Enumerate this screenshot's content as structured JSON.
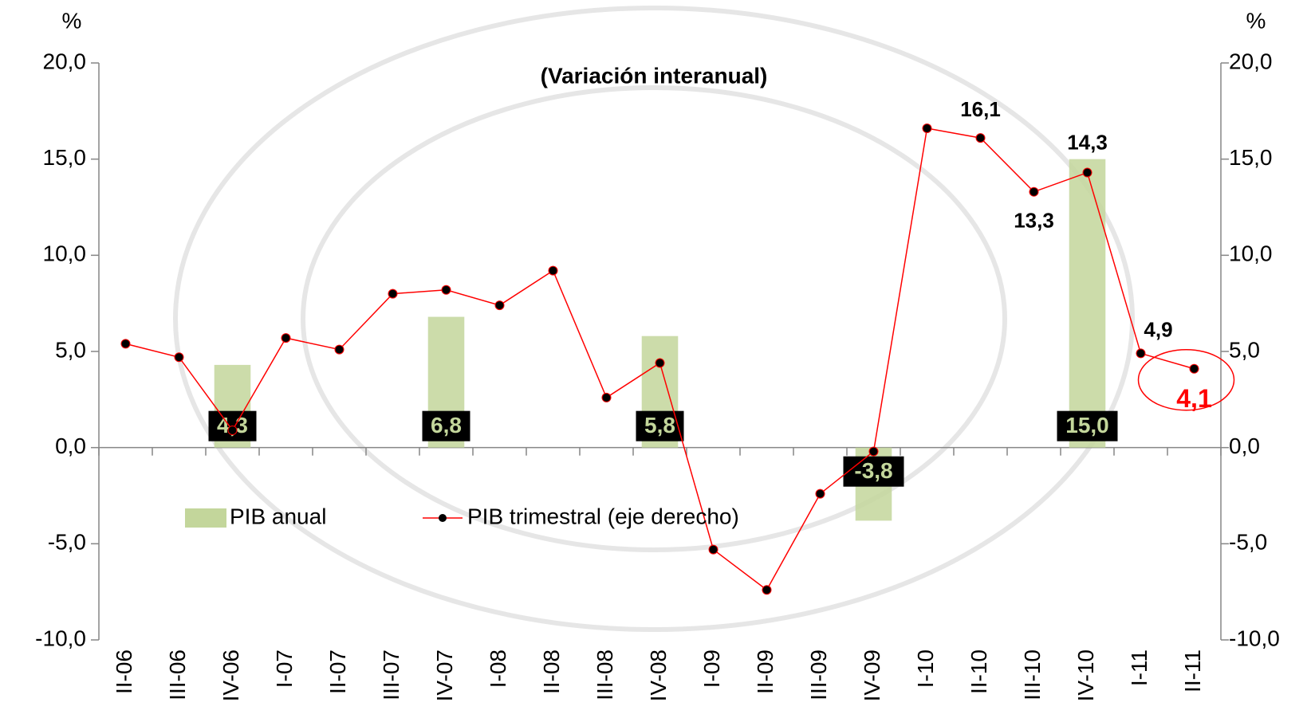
{
  "chart_data": {
    "type": "bar_line",
    "title": "(Variación interanual)",
    "y_label": "%",
    "y2_label": "%",
    "categories": [
      "II-06",
      "III-06",
      "IV-06",
      "I-07",
      "II-07",
      "III-07",
      "IV-07",
      "I-08",
      "II-08",
      "III-08",
      "IV-08",
      "I-09",
      "II-09",
      "III-09",
      "IV-09",
      "I-10",
      "II-10",
      "III-10",
      "IV-10",
      "I-11",
      "II-11"
    ],
    "series": [
      {
        "name": "PIB anual",
        "type": "bar",
        "color": "#c3d69b",
        "values": [
          null,
          null,
          4.3,
          null,
          null,
          null,
          6.8,
          null,
          null,
          null,
          5.8,
          null,
          null,
          null,
          -3.8,
          null,
          null,
          null,
          15.0,
          null,
          null
        ],
        "value_labels": [
          null,
          null,
          "4,3",
          null,
          null,
          null,
          "6,8",
          null,
          null,
          null,
          "5,8",
          null,
          null,
          null,
          "-3,8",
          null,
          null,
          null,
          "15,0",
          null,
          null
        ]
      },
      {
        "name": "PIB trimestral (eje derecho)",
        "type": "line",
        "axis": "y2",
        "color": "#ff0000",
        "marker_color": "#000000",
        "values": [
          5.4,
          4.7,
          0.9,
          5.7,
          5.1,
          8.0,
          8.2,
          7.4,
          9.2,
          2.6,
          4.4,
          -5.3,
          -7.4,
          -2.4,
          -0.2,
          16.6,
          16.1,
          13.3,
          14.3,
          4.9,
          4.1
        ],
        "value_labels": [
          null,
          null,
          null,
          null,
          null,
          null,
          null,
          null,
          null,
          null,
          null,
          null,
          null,
          null,
          null,
          null,
          "16,1",
          "13,3",
          "14,3",
          "4,9",
          "4,1"
        ],
        "highlight_color": "#ff0000"
      }
    ],
    "ylim": [
      -10,
      20
    ],
    "yticks": [
      {
        "value": -10,
        "label": "-10,0"
      },
      {
        "value": -5,
        "label": "-5,0"
      },
      {
        "value": 0,
        "label": "0,0"
      },
      {
        "value": 5,
        "label": "5,0"
      },
      {
        "value": 10,
        "label": "10,0"
      },
      {
        "value": 15,
        "label": "15,0"
      },
      {
        "value": 20,
        "label": "20,0"
      }
    ],
    "y2lim": [
      -10,
      20
    ],
    "y2ticks": [
      {
        "value": -10,
        "label": "-10,0"
      },
      {
        "value": -5,
        "label": "-5,0"
      },
      {
        "value": 0,
        "label": "0,0"
      },
      {
        "value": 5,
        "label": "5,0"
      },
      {
        "value": 10,
        "label": "10,0"
      },
      {
        "value": 15,
        "label": "15,0"
      },
      {
        "value": 20,
        "label": "20,0"
      }
    ],
    "grid": false
  }
}
